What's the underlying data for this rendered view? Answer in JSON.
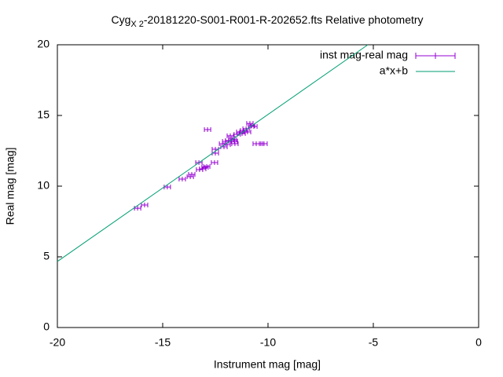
{
  "chart_data": {
    "type": "scatter",
    "title": [
      "Cyg",
      "X 2",
      "-20181220-S001-R001-R-202652.fts Relative photometry"
    ],
    "xlabel": "Instrument mag [mag]",
    "ylabel": "Real mag [mag]",
    "xlim": [
      -20,
      0
    ],
    "ylim": [
      0,
      20
    ],
    "xticks": [
      -20,
      -15,
      -10,
      -5,
      0
    ],
    "yticks": [
      0,
      5,
      10,
      15,
      20
    ],
    "legend": "top right",
    "series": [
      {
        "name": "inst mag-real mag",
        "color": "#9400d3",
        "style": "xerrorbars",
        "xerr": 0.15,
        "x": [
          -16.19,
          -15.86,
          -14.78,
          -14.07,
          -13.69,
          -13.62,
          -13.28,
          -13.25,
          -13.1,
          -12.99,
          -12.91,
          -12.87,
          -12.54,
          -12.5,
          -12.5,
          -12.16,
          -12.09,
          -12.01,
          -11.94,
          -11.87,
          -11.79,
          -11.72,
          -11.64,
          -11.57,
          -11.46,
          -11.34,
          -11.23,
          -11.16,
          -11.04,
          -10.97,
          -10.86,
          -10.78,
          -10.67,
          -10.56,
          -10.41,
          -10.19,
          -11.6
        ],
        "y": [
          8.44,
          8.67,
          9.94,
          10.5,
          10.67,
          10.83,
          11.67,
          11.17,
          11.22,
          11.33,
          11.39,
          14.0,
          11.67,
          12.61,
          12.33,
          13.0,
          12.78,
          13.17,
          12.94,
          13.22,
          13.56,
          13.39,
          13.28,
          13.0,
          13.67,
          13.83,
          13.72,
          13.94,
          14.06,
          13.83,
          14.44,
          14.28,
          14.22,
          13.0,
          13.0,
          13.0,
          13.17
        ]
      },
      {
        "name": "a*x+b",
        "color": "#009e73",
        "style": "line",
        "x": [
          -20,
          -5.26
        ],
        "y": [
          4.67,
          20
        ]
      }
    ]
  }
}
